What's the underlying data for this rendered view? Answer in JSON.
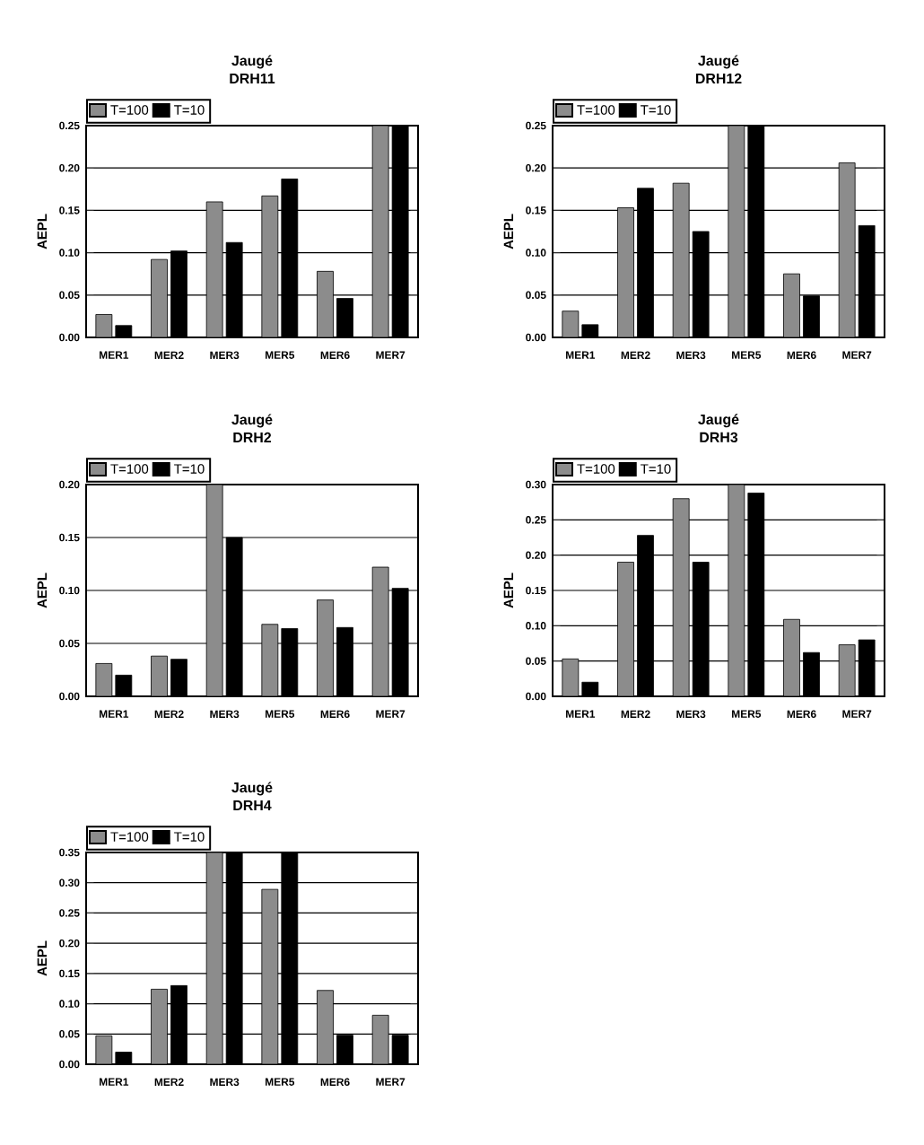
{
  "chart_data": [
    {
      "type": "bar",
      "title": "Jaugé",
      "subtitle": "DRH11",
      "ylabel": "AEPL",
      "categories": [
        "MER1",
        "MER2",
        "MER3",
        "MER5",
        "MER6",
        "MER7"
      ],
      "series": [
        {
          "name": "T=100",
          "color": "#8c8c8c",
          "values": [
            0.027,
            0.092,
            0.16,
            0.167,
            0.078,
            0.25
          ]
        },
        {
          "name": "T=10",
          "color": "#000000",
          "values": [
            0.014,
            0.102,
            0.112,
            0.187,
            0.046,
            0.25
          ]
        }
      ],
      "ylim": [
        0,
        0.25
      ],
      "yticks": [
        {
          "value": 0,
          "label": "0.00"
        },
        {
          "value": 0.05,
          "label": "0.05"
        },
        {
          "value": 0.1,
          "label": "0.10"
        },
        {
          "value": 0.15,
          "label": "0.15"
        },
        {
          "value": 0.2,
          "label": "0.20"
        },
        {
          "value": 0.25,
          "label": "0.25"
        }
      ],
      "grid": "y",
      "legend": "top left"
    },
    {
      "type": "bar",
      "title": "Jaugé",
      "subtitle": "DRH12",
      "ylabel": "AEPL",
      "categories": [
        "MER1",
        "MER2",
        "MER3",
        "MER5",
        "MER6",
        "MER7"
      ],
      "series": [
        {
          "name": "T=100",
          "color": "#8c8c8c",
          "values": [
            0.031,
            0.153,
            0.182,
            0.25,
            0.075,
            0.206
          ]
        },
        {
          "name": "T=10",
          "color": "#000000",
          "values": [
            0.015,
            0.176,
            0.125,
            0.25,
            0.049,
            0.132
          ]
        }
      ],
      "ylim": [
        0,
        0.25
      ],
      "yticks": [
        {
          "value": 0,
          "label": "0.00"
        },
        {
          "value": 0.05,
          "label": "0.05"
        },
        {
          "value": 0.1,
          "label": "0.10"
        },
        {
          "value": 0.15,
          "label": "0.15"
        },
        {
          "value": 0.2,
          "label": "0.20"
        },
        {
          "value": 0.25,
          "label": "0.25"
        }
      ],
      "grid": "y",
      "legend": "top left"
    },
    {
      "type": "bar",
      "title": "Jaugé",
      "subtitle": "DRH2",
      "ylabel": "AEPL",
      "categories": [
        "MER1",
        "MER2",
        "MER3",
        "MER5",
        "MER6",
        "MER7"
      ],
      "series": [
        {
          "name": "T=100",
          "color": "#8c8c8c",
          "values": [
            0.031,
            0.038,
            0.2,
            0.068,
            0.091,
            0.122
          ]
        },
        {
          "name": "T=10",
          "color": "#000000",
          "values": [
            0.02,
            0.035,
            0.15,
            0.064,
            0.065,
            0.102
          ]
        }
      ],
      "ylim": [
        0,
        0.2
      ],
      "yticks": [
        {
          "value": 0,
          "label": "0.00"
        },
        {
          "value": 0.05,
          "label": "0.05"
        },
        {
          "value": 0.1,
          "label": "0.10"
        },
        {
          "value": 0.15,
          "label": "0.15"
        },
        {
          "value": 0.2,
          "label": "0.20"
        }
      ],
      "grid": "y",
      "legend": "top left"
    },
    {
      "type": "bar",
      "title": "Jaugé",
      "subtitle": "DRH3",
      "ylabel": "AEPL",
      "categories": [
        "MER1",
        "MER2",
        "MER3",
        "MER5",
        "MER6",
        "MER7"
      ],
      "series": [
        {
          "name": "T=100",
          "color": "#8c8c8c",
          "values": [
            0.053,
            0.19,
            0.28,
            0.3,
            0.109,
            0.073
          ]
        },
        {
          "name": "T=10",
          "color": "#000000",
          "values": [
            0.02,
            0.228,
            0.19,
            0.288,
            0.062,
            0.08
          ]
        }
      ],
      "ylim": [
        0,
        0.3
      ],
      "yticks": [
        {
          "value": 0,
          "label": "0.00"
        },
        {
          "value": 0.05,
          "label": "0.05"
        },
        {
          "value": 0.1,
          "label": "0.10"
        },
        {
          "value": 0.15,
          "label": "0.15"
        },
        {
          "value": 0.2,
          "label": "0.20"
        },
        {
          "value": 0.25,
          "label": "0.25"
        },
        {
          "value": 0.3,
          "label": "0.30"
        }
      ],
      "grid": "y",
      "legend": "top left"
    },
    {
      "type": "bar",
      "title": "Jaugé",
      "subtitle": "DRH4",
      "ylabel": "AEPL",
      "categories": [
        "MER1",
        "MER2",
        "MER3",
        "MER5",
        "MER6",
        "MER7"
      ],
      "series": [
        {
          "name": "T=100",
          "color": "#8c8c8c",
          "values": [
            0.047,
            0.124,
            0.35,
            0.289,
            0.122,
            0.081
          ]
        },
        {
          "name": "T=10",
          "color": "#000000",
          "values": [
            0.02,
            0.13,
            0.35,
            0.35,
            0.048,
            0.048
          ]
        }
      ],
      "ylim": [
        0,
        0.35
      ],
      "yticks": [
        {
          "value": 0,
          "label": "0.00"
        },
        {
          "value": 0.05,
          "label": "0.05"
        },
        {
          "value": 0.1,
          "label": "0.10"
        },
        {
          "value": 0.15,
          "label": "0.15"
        },
        {
          "value": 0.2,
          "label": "0.20"
        },
        {
          "value": 0.25,
          "label": "0.25"
        },
        {
          "value": 0.3,
          "label": "0.30"
        },
        {
          "value": 0.35,
          "label": "0.35"
        }
      ],
      "grid": "y",
      "legend": "top left"
    }
  ]
}
